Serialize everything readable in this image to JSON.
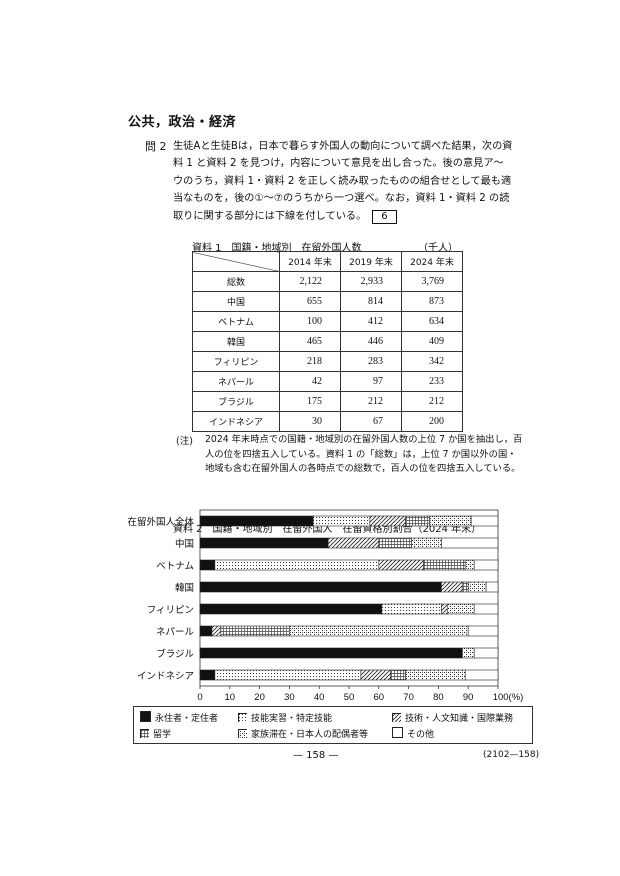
{
  "section_title": "公共，政治・経済",
  "question": {
    "label": "問 2",
    "text": "生徒Aと生徒Bは，日本で暮らす外国人の動向について調べた結果，次の資料 1 と資料 2 を見つけ，内容について意見を出し合った。後の意見ア～ウのうち，資料 1・資料 2 を正しく読み取ったものの組合せとして最も適当なものを，後の①～⑦のうちから一つ選べ。なお，資料 1・資料 2 の読取りに関する部分には下線を付している。",
    "answer_number": "6"
  },
  "table1": {
    "title": "資料 1　国籍・地域別　在留外国人数",
    "unit": "（千人）",
    "headers": [
      "2014 年末",
      "2019 年末",
      "2024 年末"
    ],
    "rows": [
      {
        "label": "総数",
        "values": [
          "2,122",
          "2,933",
          "3,769"
        ]
      },
      {
        "label": "中国",
        "values": [
          "655",
          "814",
          "873"
        ]
      },
      {
        "label": "ベトナム",
        "values": [
          "100",
          "412",
          "634"
        ]
      },
      {
        "label": "韓国",
        "values": [
          "465",
          "446",
          "409"
        ]
      },
      {
        "label": "フィリピン",
        "values": [
          "218",
          "283",
          "342"
        ]
      },
      {
        "label": "ネパール",
        "values": [
          "42",
          "97",
          "233"
        ]
      },
      {
        "label": "ブラジル",
        "values": [
          "175",
          "212",
          "212"
        ]
      },
      {
        "label": "インドネシア",
        "values": [
          "30",
          "67",
          "200"
        ]
      }
    ]
  },
  "note": {
    "label": "(注)",
    "text": "2024 年末時点での国籍・地域別の在留外国人数の上位 7 か国を抽出し，百人の位を四捨五入している。資料 1 の「総数」は，上位 7 か国以外の国・地域も含む在留外国人の各時点での総数で，百人の位を四捨五入している。"
  },
  "chart_data": {
    "type": "bar",
    "orientation": "horizontal",
    "stacked": true,
    "title": "資料 2　国籍・地域別　在留外国人　在留資格別割合（2024 年末）",
    "categories": [
      "在留外国人全体",
      "中国",
      "ベトナム",
      "韓国",
      "フィリピン",
      "ネパール",
      "ブラジル",
      "インドネシア"
    ],
    "series": [
      {
        "name": "永住者・定住者",
        "values": [
          38,
          43,
          5,
          81,
          61,
          4,
          88,
          5
        ]
      },
      {
        "name": "技能実習・特定技能",
        "values": [
          19,
          0,
          55,
          0,
          20,
          0,
          0,
          49
        ]
      },
      {
        "name": "技術・人文知識・国際業務",
        "values": [
          12,
          17,
          15,
          7,
          2,
          3,
          0,
          10
        ]
      },
      {
        "name": "留学",
        "values": [
          8,
          11,
          14,
          2,
          0,
          23,
          0,
          5
        ]
      },
      {
        "name": "家族滞在・日本人の配偶者等",
        "values": [
          14,
          10,
          3,
          6,
          9,
          60,
          4,
          20
        ]
      },
      {
        "name": "その他",
        "values": [
          9,
          19,
          8,
          4,
          8,
          10,
          8,
          11
        ]
      }
    ],
    "xlim": [
      0,
      100
    ],
    "x_ticks": [
      "0",
      "10",
      "20",
      "30",
      "40",
      "50",
      "60",
      "70",
      "80",
      "90",
      "100(%)"
    ],
    "legend_position": "bottom"
  },
  "footer": {
    "page": "— 158 —",
    "code": "(2102—158)"
  }
}
